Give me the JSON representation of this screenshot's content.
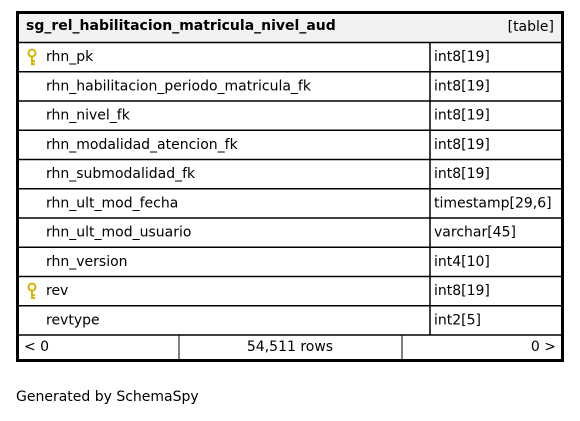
{
  "table": {
    "title": "sg_rel_habilitacion_matricula_nivel_aud",
    "tag": "[table]",
    "columns": [
      {
        "name": "rhn_pk",
        "type": "int8[19]",
        "key": true
      },
      {
        "name": "rhn_habilitacion_periodo_matricula_fk",
        "type": "int8[19]"
      },
      {
        "name": "rhn_nivel_fk",
        "type": "int8[19]"
      },
      {
        "name": "rhn_modalidad_atencion_fk",
        "type": "int8[19]"
      },
      {
        "name": "rhn_submodalidad_fk",
        "type": "int8[19]"
      },
      {
        "name": "rhn_ult_mod_fecha",
        "type": "timestamp[29,6]"
      },
      {
        "name": "rhn_ult_mod_usuario",
        "type": "varchar[45]"
      },
      {
        "name": "rhn_version",
        "type": "int4[10]"
      },
      {
        "name": "rev",
        "type": "int8[19]",
        "key": true
      },
      {
        "name": "revtype",
        "type": "int2[5]"
      }
    ],
    "footer": {
      "parents": "< 0",
      "rows": "54,511 rows",
      "children": "0 >"
    }
  },
  "generated_by": "Generated by SchemaSpy"
}
